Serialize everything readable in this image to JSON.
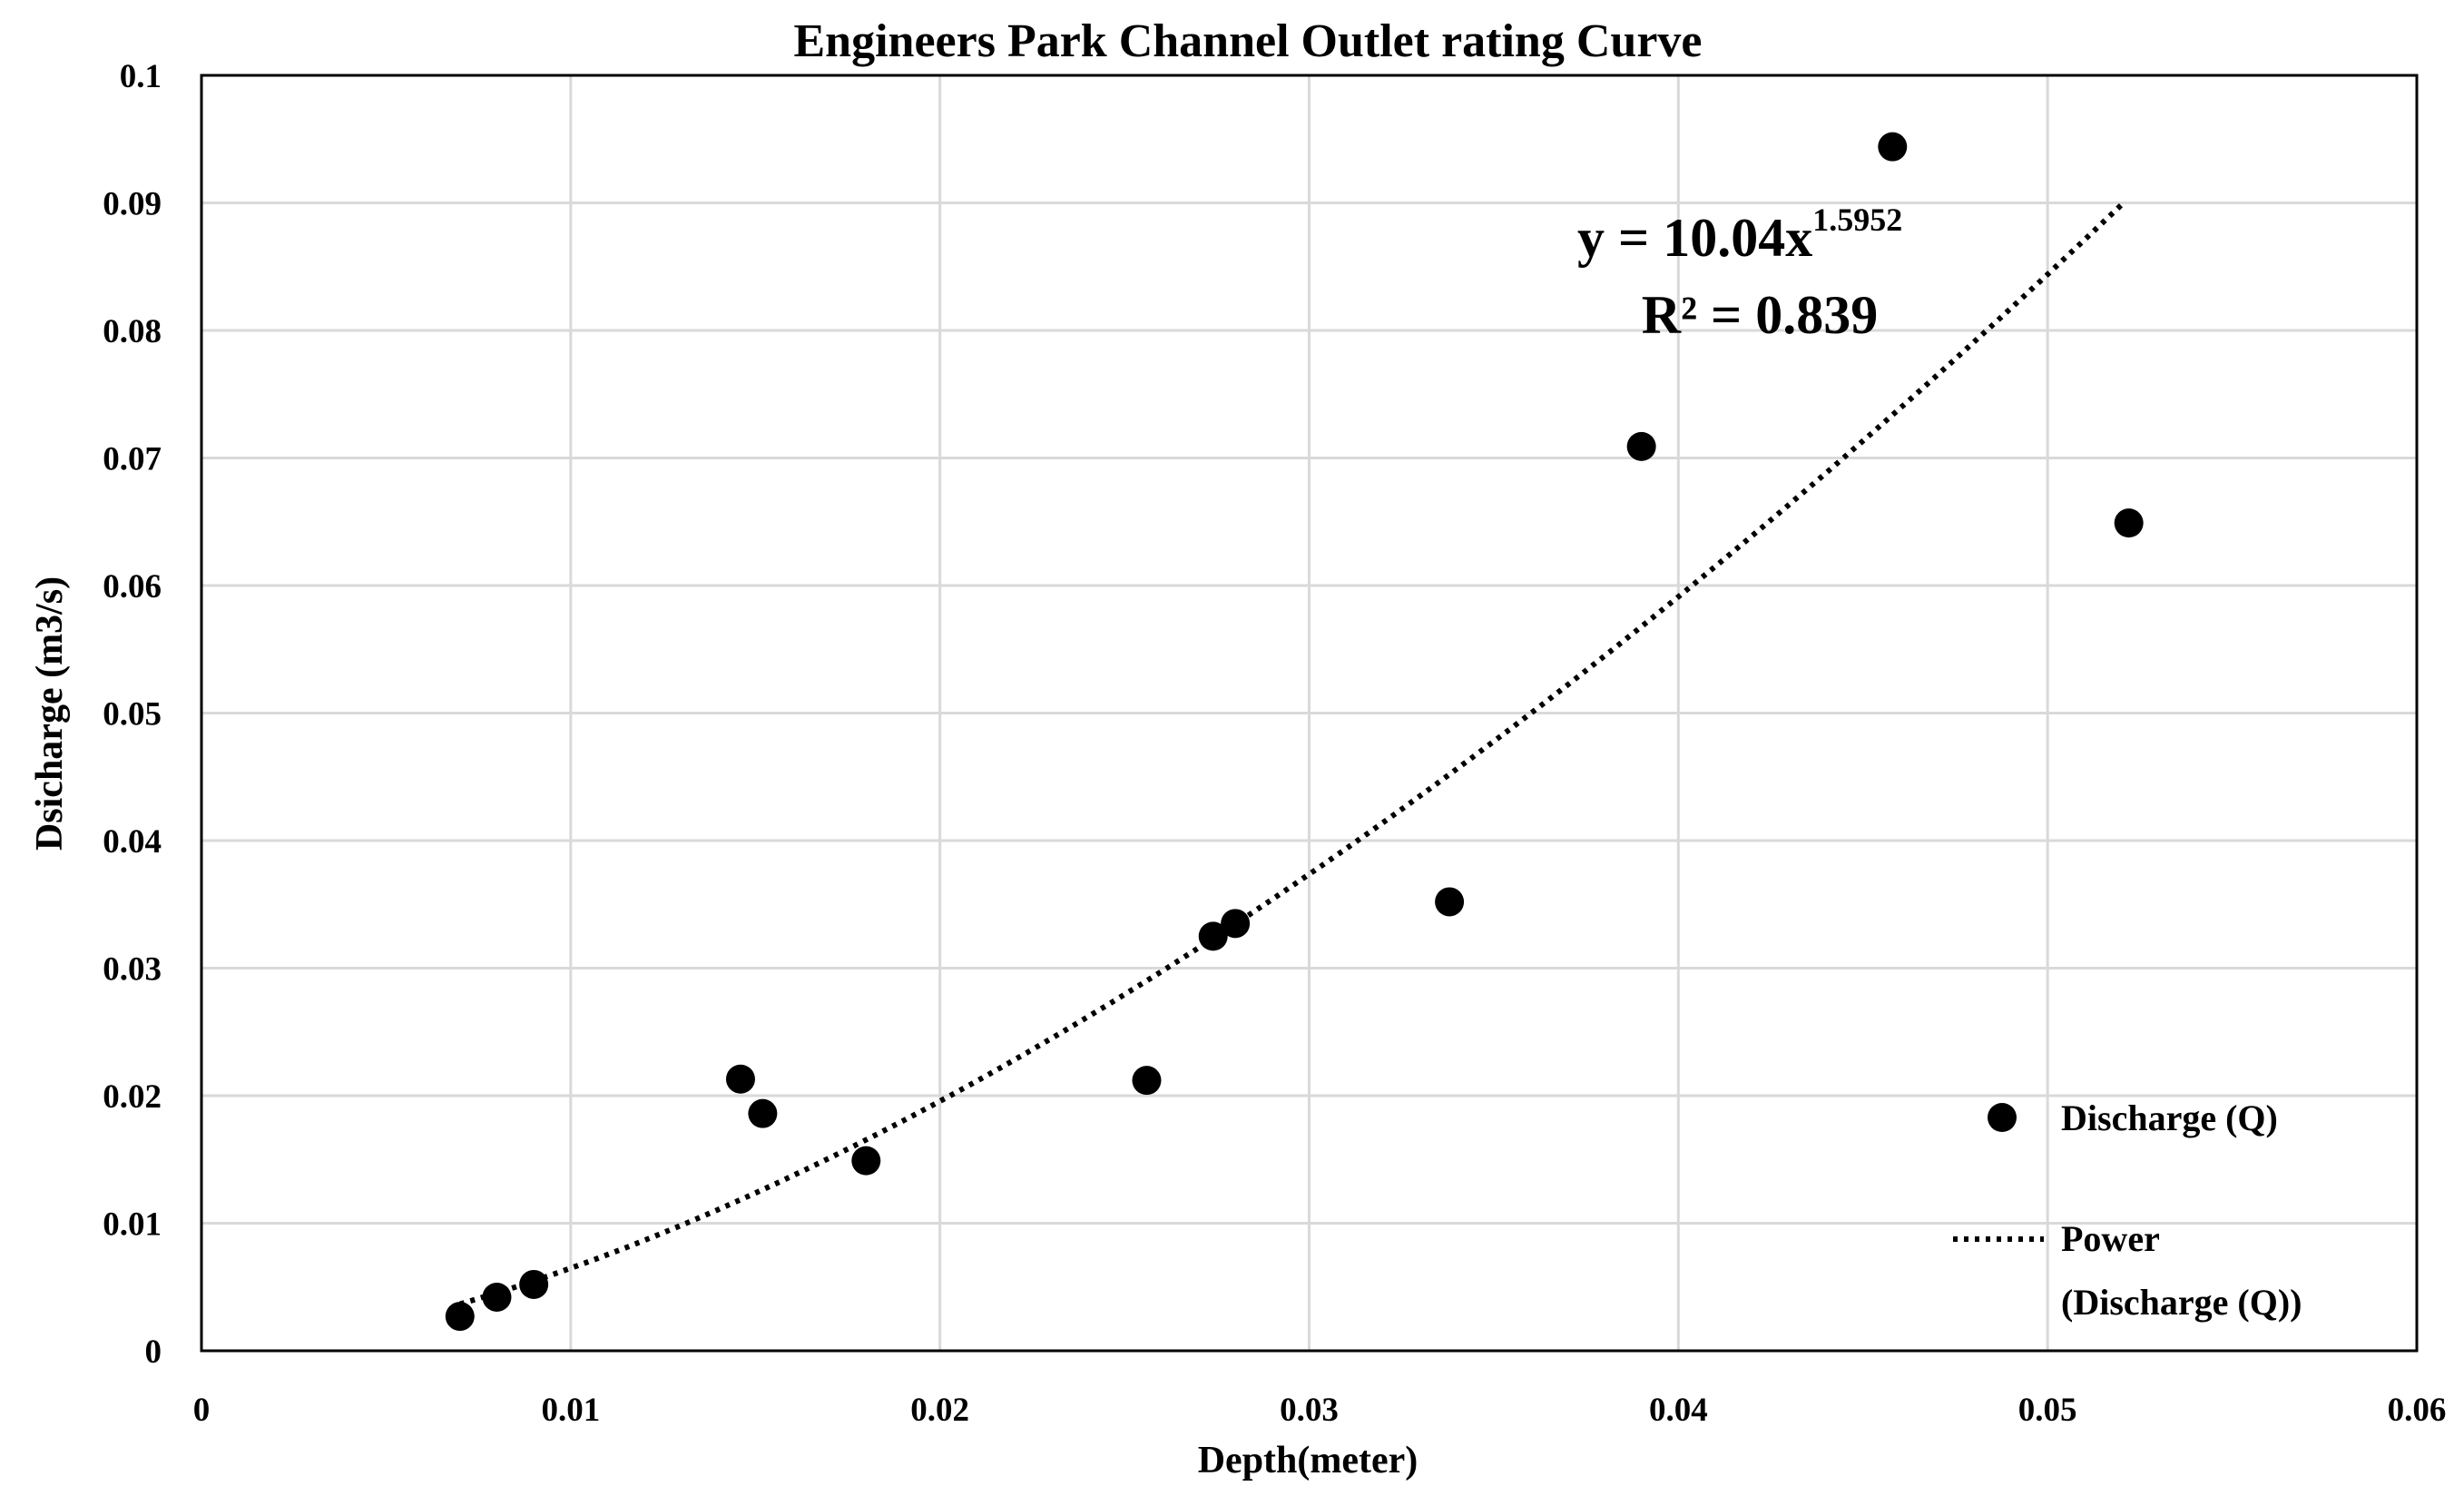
{
  "chart_data": {
    "type": "scatter",
    "title": "Engineers Park Channel Outlet rating Curve",
    "xlabel": "Depth(meter)",
    "ylabel": "Dsicharge (m3/s)",
    "xlim": [
      0,
      0.06
    ],
    "ylim": [
      0,
      0.1
    ],
    "x_ticks": [
      0,
      0.01,
      0.02,
      0.03,
      0.04,
      0.05,
      0.06
    ],
    "x_tick_labels": [
      "0",
      "0.01",
      "0.02",
      "0.03",
      "0.04",
      "0.05",
      "0.06"
    ],
    "y_ticks": [
      0,
      0.01,
      0.02,
      0.03,
      0.04,
      0.05,
      0.06,
      0.07,
      0.08,
      0.09,
      0.1
    ],
    "y_tick_labels": [
      "0",
      "0.01",
      "0.02",
      "0.03",
      "0.04",
      "0.05",
      "0.06",
      "0.07",
      "0.08",
      "0.09",
      "0.1"
    ],
    "grid": true,
    "series": [
      {
        "name": "Discharge (Q)",
        "kind": "scatter",
        "color": "#000000",
        "x": [
          0.007,
          0.008,
          0.009,
          0.0146,
          0.0152,
          0.018,
          0.0256,
          0.0274,
          0.028,
          0.0338,
          0.039,
          0.0458,
          0.0522
        ],
        "y": [
          0.0027,
          0.0042,
          0.0052,
          0.0213,
          0.0186,
          0.0149,
          0.0212,
          0.0325,
          0.0335,
          0.0352,
          0.0709,
          0.0944,
          0.0649
        ]
      },
      {
        "name": "Power\n(Discharge (Q))",
        "legend_lines": [
          "Power",
          "(Discharge (Q))"
        ],
        "kind": "trendline",
        "style": "dotted",
        "color": "#000000",
        "model": "power",
        "coefficient": 10.04,
        "exponent": 1.5952,
        "x_range": [
          0.007,
          0.052
        ]
      }
    ],
    "annotation": {
      "equation_base": "y = 10.04x",
      "equation_exponent": "1.5952",
      "r_squared": "R² = 0.839"
    },
    "legend_position": "bottom-right"
  }
}
